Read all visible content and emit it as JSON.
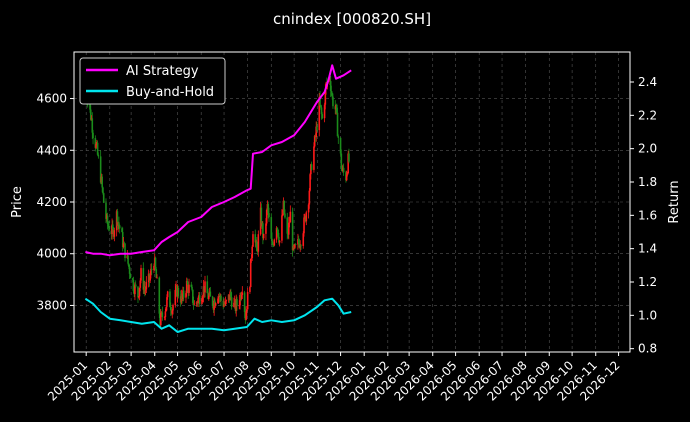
{
  "chart_data": {
    "type": "line",
    "title": "cnindex [000820.SH]",
    "ylabel_left": "Price",
    "ylabel_right": "Return",
    "grid": true,
    "legend_position": "top-left",
    "x_tick_labels": [
      "2025-01",
      "2025-02",
      "2025-03",
      "2025-04",
      "2025-05",
      "2025-06",
      "2025-07",
      "2025-08",
      "2025-09",
      "2025-10",
      "2025-11",
      "2025-12",
      "2026-01",
      "2026-02",
      "2026-03",
      "2026-04",
      "2026-05",
      "2026-06",
      "2026-07",
      "2026-08",
      "2026-09",
      "2026-10",
      "2026-11",
      "2026-12"
    ],
    "xlim": [
      "2024-12-16",
      "2026-12-16"
    ],
    "price_axis": {
      "ylim": [
        3620,
        4780
      ],
      "ticks": [
        3800,
        4000,
        4200,
        4400,
        4600
      ]
    },
    "return_axis": {
      "ylim": [
        0.78,
        2.58
      ],
      "ticks": [
        0.8,
        1.0,
        1.2,
        1.4,
        1.6,
        1.8,
        2.0,
        2.2,
        2.4
      ]
    },
    "colors": {
      "up": "#ff1a1a",
      "down": "#1b8c1b",
      "ai": "#ff00ff",
      "bh": "#00e5ee",
      "grid": "#555555"
    },
    "price_close": [
      [
        "2024-12-31",
        4660
      ],
      [
        "2025-01-03",
        4590
      ],
      [
        "2025-01-08",
        4520
      ],
      [
        "2025-01-10",
        4470
      ],
      [
        "2025-01-15",
        4400
      ],
      [
        "2025-01-20",
        4300
      ],
      [
        "2025-01-24",
        4200
      ],
      [
        "2025-01-28",
        4120
      ],
      [
        "2025-02-05",
        4080
      ],
      [
        "2025-02-10",
        4150
      ],
      [
        "2025-02-14",
        4100
      ],
      [
        "2025-02-20",
        4020
      ],
      [
        "2025-02-26",
        3950
      ],
      [
        "2025-03-04",
        3880
      ],
      [
        "2025-03-10",
        3840
      ],
      [
        "2025-03-14",
        3920
      ],
      [
        "2025-03-19",
        3860
      ],
      [
        "2025-03-25",
        3900
      ],
      [
        "2025-03-31",
        3980
      ],
      [
        "2025-04-04",
        3880
      ],
      [
        "2025-04-08",
        3740
      ],
      [
        "2025-04-14",
        3780
      ],
      [
        "2025-04-18",
        3830
      ],
      [
        "2025-04-24",
        3790
      ],
      [
        "2025-04-30",
        3860
      ],
      [
        "2025-05-07",
        3820
      ],
      [
        "2025-05-13",
        3880
      ],
      [
        "2025-05-19",
        3850
      ],
      [
        "2025-05-23",
        3800
      ],
      [
        "2025-05-29",
        3830
      ],
      [
        "2025-06-05",
        3870
      ],
      [
        "2025-06-11",
        3830
      ],
      [
        "2025-06-17",
        3810
      ],
      [
        "2025-06-23",
        3850
      ],
      [
        "2025-06-27",
        3820
      ],
      [
        "2025-07-03",
        3800
      ],
      [
        "2025-07-09",
        3840
      ],
      [
        "2025-07-15",
        3790
      ],
      [
        "2025-07-21",
        3820
      ],
      [
        "2025-07-25",
        3880
      ],
      [
        "2025-07-29",
        3760
      ],
      [
        "2025-08-04",
        3900
      ],
      [
        "2025-08-08",
        4100
      ],
      [
        "2025-08-13",
        4000
      ],
      [
        "2025-08-18",
        4150
      ],
      [
        "2025-08-22",
        4050
      ],
      [
        "2025-08-27",
        4180
      ],
      [
        "2025-09-02",
        4020
      ],
      [
        "2025-09-08",
        4120
      ],
      [
        "2025-09-12",
        4050
      ],
      [
        "2025-09-17",
        4180
      ],
      [
        "2025-09-22",
        4060
      ],
      [
        "2025-09-26",
        4150
      ],
      [
        "2025-09-30",
        4000
      ],
      [
        "2025-10-10",
        4060
      ],
      [
        "2025-10-15",
        4130
      ],
      [
        "2025-10-20",
        4220
      ],
      [
        "2025-10-24",
        4350
      ],
      [
        "2025-10-29",
        4450
      ],
      [
        "2025-11-03",
        4580
      ],
      [
        "2025-11-07",
        4520
      ],
      [
        "2025-11-12",
        4650
      ],
      [
        "2025-11-17",
        4680
      ],
      [
        "2025-11-20",
        4600
      ],
      [
        "2025-11-25",
        4550
      ],
      [
        "2025-11-28",
        4450
      ],
      [
        "2025-12-03",
        4320
      ],
      [
        "2025-12-08",
        4300
      ],
      [
        "2025-12-11",
        4360
      ],
      [
        "2025-12-15",
        4350
      ]
    ],
    "series": [
      {
        "name": "AI Strategy",
        "points": [
          [
            "2024-12-31",
            1.38
          ],
          [
            "2025-01-10",
            1.37
          ],
          [
            "2025-01-20",
            1.37
          ],
          [
            "2025-02-01",
            1.36
          ],
          [
            "2025-02-15",
            1.37
          ],
          [
            "2025-03-01",
            1.37
          ],
          [
            "2025-03-15",
            1.38
          ],
          [
            "2025-03-31",
            1.39
          ],
          [
            "2025-04-10",
            1.44
          ],
          [
            "2025-04-20",
            1.47
          ],
          [
            "2025-05-01",
            1.5
          ],
          [
            "2025-05-15",
            1.56
          ],
          [
            "2025-06-01",
            1.59
          ],
          [
            "2025-06-15",
            1.65
          ],
          [
            "2025-07-01",
            1.68
          ],
          [
            "2025-07-15",
            1.71
          ],
          [
            "2025-07-31",
            1.75
          ],
          [
            "2025-08-05",
            1.76
          ],
          [
            "2025-08-08",
            1.97
          ],
          [
            "2025-08-20",
            1.98
          ],
          [
            "2025-09-01",
            2.02
          ],
          [
            "2025-09-15",
            2.04
          ],
          [
            "2025-10-01",
            2.08
          ],
          [
            "2025-10-15",
            2.16
          ],
          [
            "2025-10-31",
            2.28
          ],
          [
            "2025-11-10",
            2.34
          ],
          [
            "2025-11-15",
            2.41
          ],
          [
            "2025-11-20",
            2.5
          ],
          [
            "2025-11-25",
            2.42
          ],
          [
            "2025-12-05",
            2.44
          ],
          [
            "2025-12-15",
            2.47
          ]
        ]
      },
      {
        "name": "Buy-and-Hold",
        "points": [
          [
            "2024-12-31",
            1.1
          ],
          [
            "2025-01-10",
            1.07
          ],
          [
            "2025-01-20",
            1.02
          ],
          [
            "2025-02-01",
            0.98
          ],
          [
            "2025-02-15",
            0.97
          ],
          [
            "2025-03-01",
            0.96
          ],
          [
            "2025-03-15",
            0.95
          ],
          [
            "2025-03-31",
            0.96
          ],
          [
            "2025-04-10",
            0.92
          ],
          [
            "2025-04-20",
            0.94
          ],
          [
            "2025-05-01",
            0.9
          ],
          [
            "2025-05-15",
            0.92
          ],
          [
            "2025-06-01",
            0.92
          ],
          [
            "2025-06-15",
            0.92
          ],
          [
            "2025-07-01",
            0.91
          ],
          [
            "2025-07-15",
            0.92
          ],
          [
            "2025-07-31",
            0.93
          ],
          [
            "2025-08-10",
            0.98
          ],
          [
            "2025-08-20",
            0.96
          ],
          [
            "2025-09-01",
            0.97
          ],
          [
            "2025-09-15",
            0.96
          ],
          [
            "2025-10-01",
            0.97
          ],
          [
            "2025-10-15",
            1.0
          ],
          [
            "2025-10-31",
            1.05
          ],
          [
            "2025-11-10",
            1.09
          ],
          [
            "2025-11-20",
            1.1
          ],
          [
            "2025-11-28",
            1.06
          ],
          [
            "2025-12-05",
            1.01
          ],
          [
            "2025-12-15",
            1.02
          ]
        ]
      }
    ]
  }
}
